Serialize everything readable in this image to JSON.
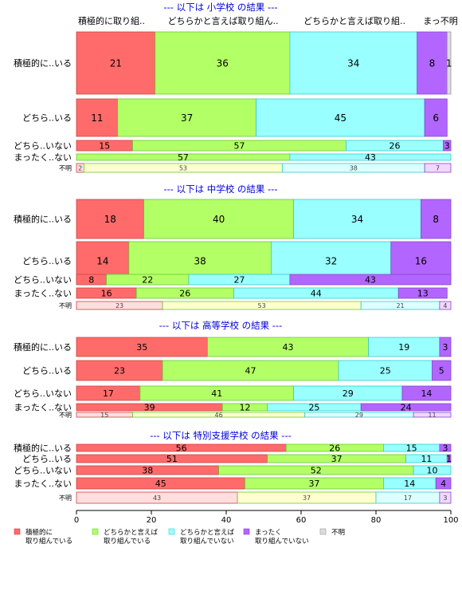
{
  "chart_data": {
    "type": "bar",
    "orientation": "horizontal",
    "stacking": "percent",
    "xlim": [
      0,
      100
    ],
    "xticks": [
      0,
      20,
      40,
      60,
      80,
      100
    ],
    "top_headers": [
      "積極的に取り組..",
      "どちらかと言えば取り組ん..",
      "どちらかと言えば取り組..",
      "まっ不明"
    ],
    "colors": [
      "#ff6b6b",
      "#b3ff66",
      "#99ffff",
      "#b266ff",
      "#dcdcdc"
    ],
    "legend": [
      {
        "line1": "積極的に",
        "line2": "取り組んでいる"
      },
      {
        "line1": "どちらかと言えば",
        "line2": "取り組んでいる"
      },
      {
        "line1": "どちらかと言えば",
        "line2": "取り組んでいない"
      },
      {
        "line1": "まったく",
        "line2": "取り組んでいない"
      },
      {
        "line1": "不明",
        "line2": ""
      }
    ],
    "panels": [
      {
        "title": "--- 以下は 小学校 の結果 ---",
        "rows": [
          {
            "label": "積極的に..いる",
            "values": [
              21,
              36,
              34,
              8,
              1
            ],
            "labels": [
              "21",
              "36",
              "34",
              "8",
              "1"
            ]
          },
          {
            "label": "どちら..いる",
            "values": [
              11,
              37,
              45,
              6,
              0
            ],
            "labels": [
              "11",
              "37",
              "45",
              "6",
              ""
            ]
          },
          {
            "label": "どちら..いない",
            "values": [
              15,
              57,
              26,
              3,
              0
            ],
            "labels": [
              "15",
              "57",
              "26",
              "3",
              ""
            ]
          },
          {
            "label": "まったく..ない",
            "values": [
              0,
              57,
              43,
              0,
              0
            ],
            "labels": [
              "",
              "57",
              "43",
              "",
              ""
            ]
          },
          {
            "label": "不明",
            "values": [
              2,
              53,
              38,
              7,
              0
            ],
            "labels": [
              "2",
              "53",
              "38",
              "7",
              ""
            ]
          }
        ]
      },
      {
        "title": "--- 以下は 中学校 の結果 ---",
        "rows": [
          {
            "label": "積極的に..いる",
            "values": [
              18,
              40,
              34,
              8,
              0
            ],
            "labels": [
              "18",
              "40",
              "34",
              "8",
              ""
            ]
          },
          {
            "label": "どちら..いる",
            "values": [
              14,
              38,
              32,
              16,
              0
            ],
            "labels": [
              "14",
              "38",
              "32",
              "16",
              ""
            ]
          },
          {
            "label": "どちら..いない",
            "values": [
              8,
              22,
              27,
              43,
              0
            ],
            "labels": [
              "8",
              "22",
              "27",
              "43",
              ""
            ]
          },
          {
            "label": "まったく..ない",
            "values": [
              16,
              26,
              44,
              13,
              0
            ],
            "labels": [
              "16",
              "26",
              "44",
              "13",
              ""
            ]
          },
          {
            "label": "不明",
            "values": [
              23,
              53,
              21,
              4,
              0
            ],
            "labels": [
              "23",
              "53",
              "21",
              "4",
              ""
            ]
          }
        ]
      },
      {
        "title": "--- 以下は 高等学校 の結果 ---",
        "rows": [
          {
            "label": "積極的に..いる",
            "values": [
              35,
              43,
              19,
              3,
              0
            ],
            "labels": [
              "35",
              "43",
              "19",
              "3",
              ""
            ]
          },
          {
            "label": "どちら..いる",
            "values": [
              23,
              47,
              25,
              5,
              0
            ],
            "labels": [
              "23",
              "47",
              "25",
              "5",
              ""
            ]
          },
          {
            "label": "どちら..いない",
            "values": [
              17,
              41,
              29,
              14,
              0
            ],
            "labels": [
              "17",
              "41",
              "29",
              "14",
              ""
            ]
          },
          {
            "label": "まったく..ない",
            "values": [
              39,
              12,
              25,
              24,
              0
            ],
            "labels": [
              "39",
              "12",
              "25",
              "24",
              ""
            ]
          },
          {
            "label": "不明",
            "values": [
              15,
              46,
              29,
              11,
              0
            ],
            "labels": [
              "15",
              "46",
              "29",
              "11",
              ""
            ]
          }
        ]
      },
      {
        "title": "--- 以下は 特別支援学校 の結果 ---",
        "rows": [
          {
            "label": "積極的に..いる",
            "values": [
              56,
              26,
              15,
              3,
              0
            ],
            "labels": [
              "56",
              "26",
              "15",
              "3",
              ""
            ]
          },
          {
            "label": "どちら..いる",
            "values": [
              51,
              37,
              11,
              1,
              0
            ],
            "labels": [
              "51",
              "37",
              "11",
              "1",
              ""
            ]
          },
          {
            "label": "どちら..いない",
            "values": [
              38,
              52,
              10,
              0,
              0
            ],
            "labels": [
              "38",
              "52",
              "10",
              "",
              ""
            ]
          },
          {
            "label": "まったく..ない",
            "values": [
              45,
              37,
              14,
              4,
              0
            ],
            "labels": [
              "45",
              "37",
              "14",
              "4",
              ""
            ]
          },
          {
            "label": "不明",
            "values": [
              43,
              37,
              17,
              3,
              0
            ],
            "labels": [
              "43",
              "37",
              "17",
              "3",
              ""
            ]
          }
        ]
      }
    ]
  }
}
